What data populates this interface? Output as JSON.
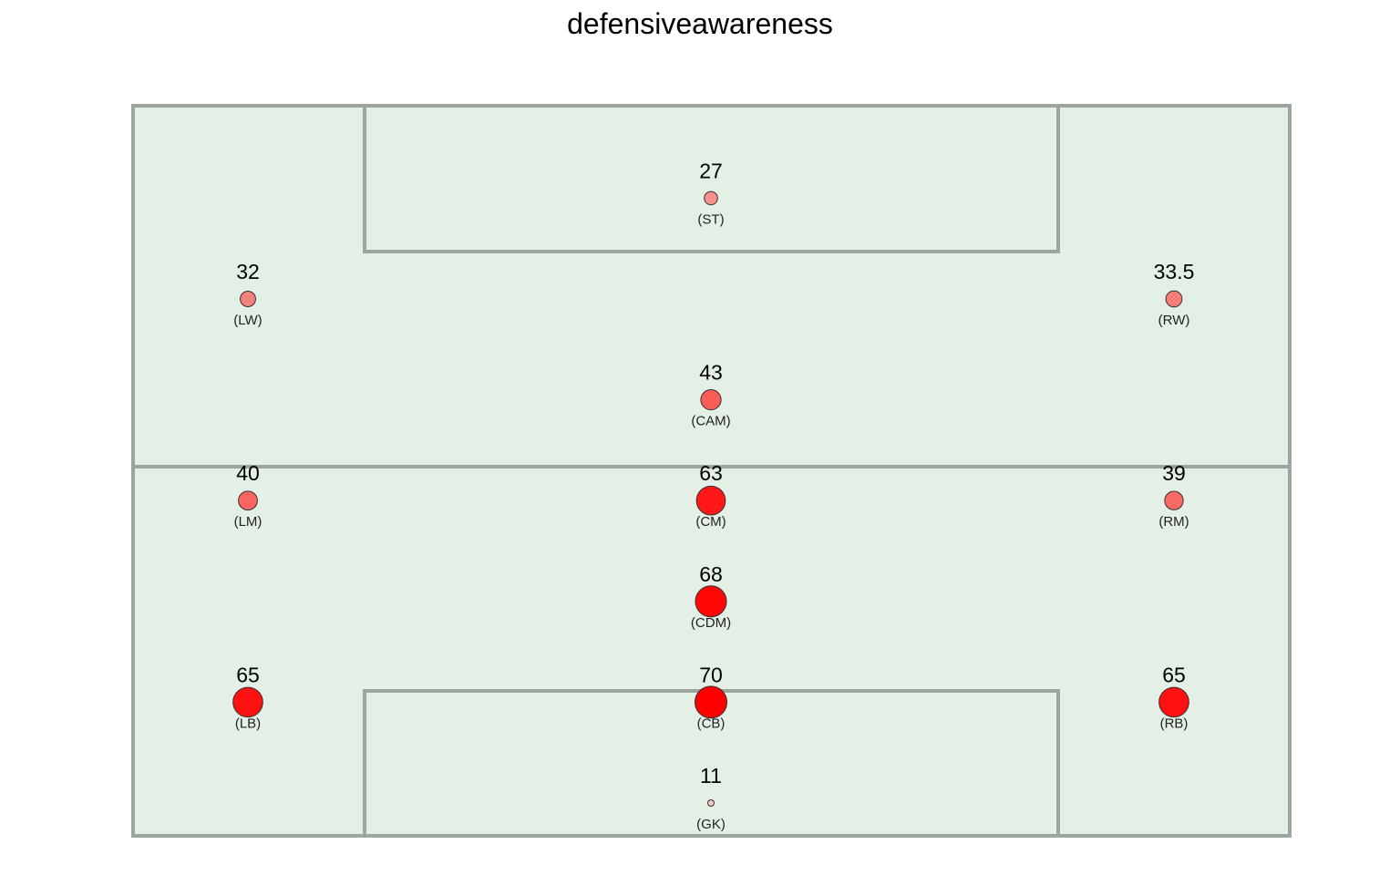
{
  "chart_data": {
    "type": "scatter",
    "title": "defensiveawareness",
    "xlabel": "",
    "ylabel": "",
    "grid": false,
    "legend": "none",
    "colors": {
      "pitch_fill": "#e4efe6",
      "pitch_line": "#9ca59e",
      "low": "#ffffff",
      "high": "#ff0000",
      "point_stroke": "#333333"
    },
    "points": [
      {
        "position": "(ST)",
        "value": "27",
        "x": 0,
        "y": 6
      },
      {
        "position": "(LW)",
        "value": "32",
        "x": -1,
        "y": 5
      },
      {
        "position": "(RW)",
        "value": "33.5",
        "x": 1,
        "y": 5
      },
      {
        "position": "(CAM)",
        "value": "43",
        "x": 0,
        "y": 4
      },
      {
        "position": "(LM)",
        "value": "40",
        "x": -1,
        "y": 3
      },
      {
        "position": "(CM)",
        "value": "63",
        "x": 0,
        "y": 3
      },
      {
        "position": "(RM)",
        "value": "39",
        "x": 1,
        "y": 3
      },
      {
        "position": "(CDM)",
        "value": "68",
        "x": 0,
        "y": 2
      },
      {
        "position": "(LB)",
        "value": "65",
        "x": -1,
        "y": 1
      },
      {
        "position": "(CB)",
        "value": "70",
        "x": 0,
        "y": 1
      },
      {
        "position": "(RB)",
        "value": "65",
        "x": 1,
        "y": 1
      },
      {
        "position": "(GK)",
        "value": "11",
        "x": 0,
        "y": 0
      }
    ]
  }
}
